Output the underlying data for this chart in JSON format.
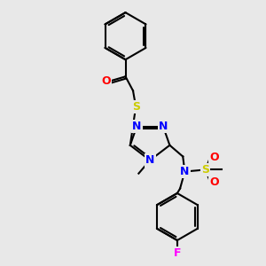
{
  "background_color": "#e8e8e8",
  "bond_color": "#000000",
  "atom_colors": {
    "N": "#0000ff",
    "O": "#ff0000",
    "S_thio": "#cccc00",
    "S_sulfo": "#cccc00",
    "F": "#ff00ff",
    "C": "#000000"
  },
  "font_size_atom": 9,
  "figsize": [
    3.0,
    3.0
  ],
  "dpi": 100
}
